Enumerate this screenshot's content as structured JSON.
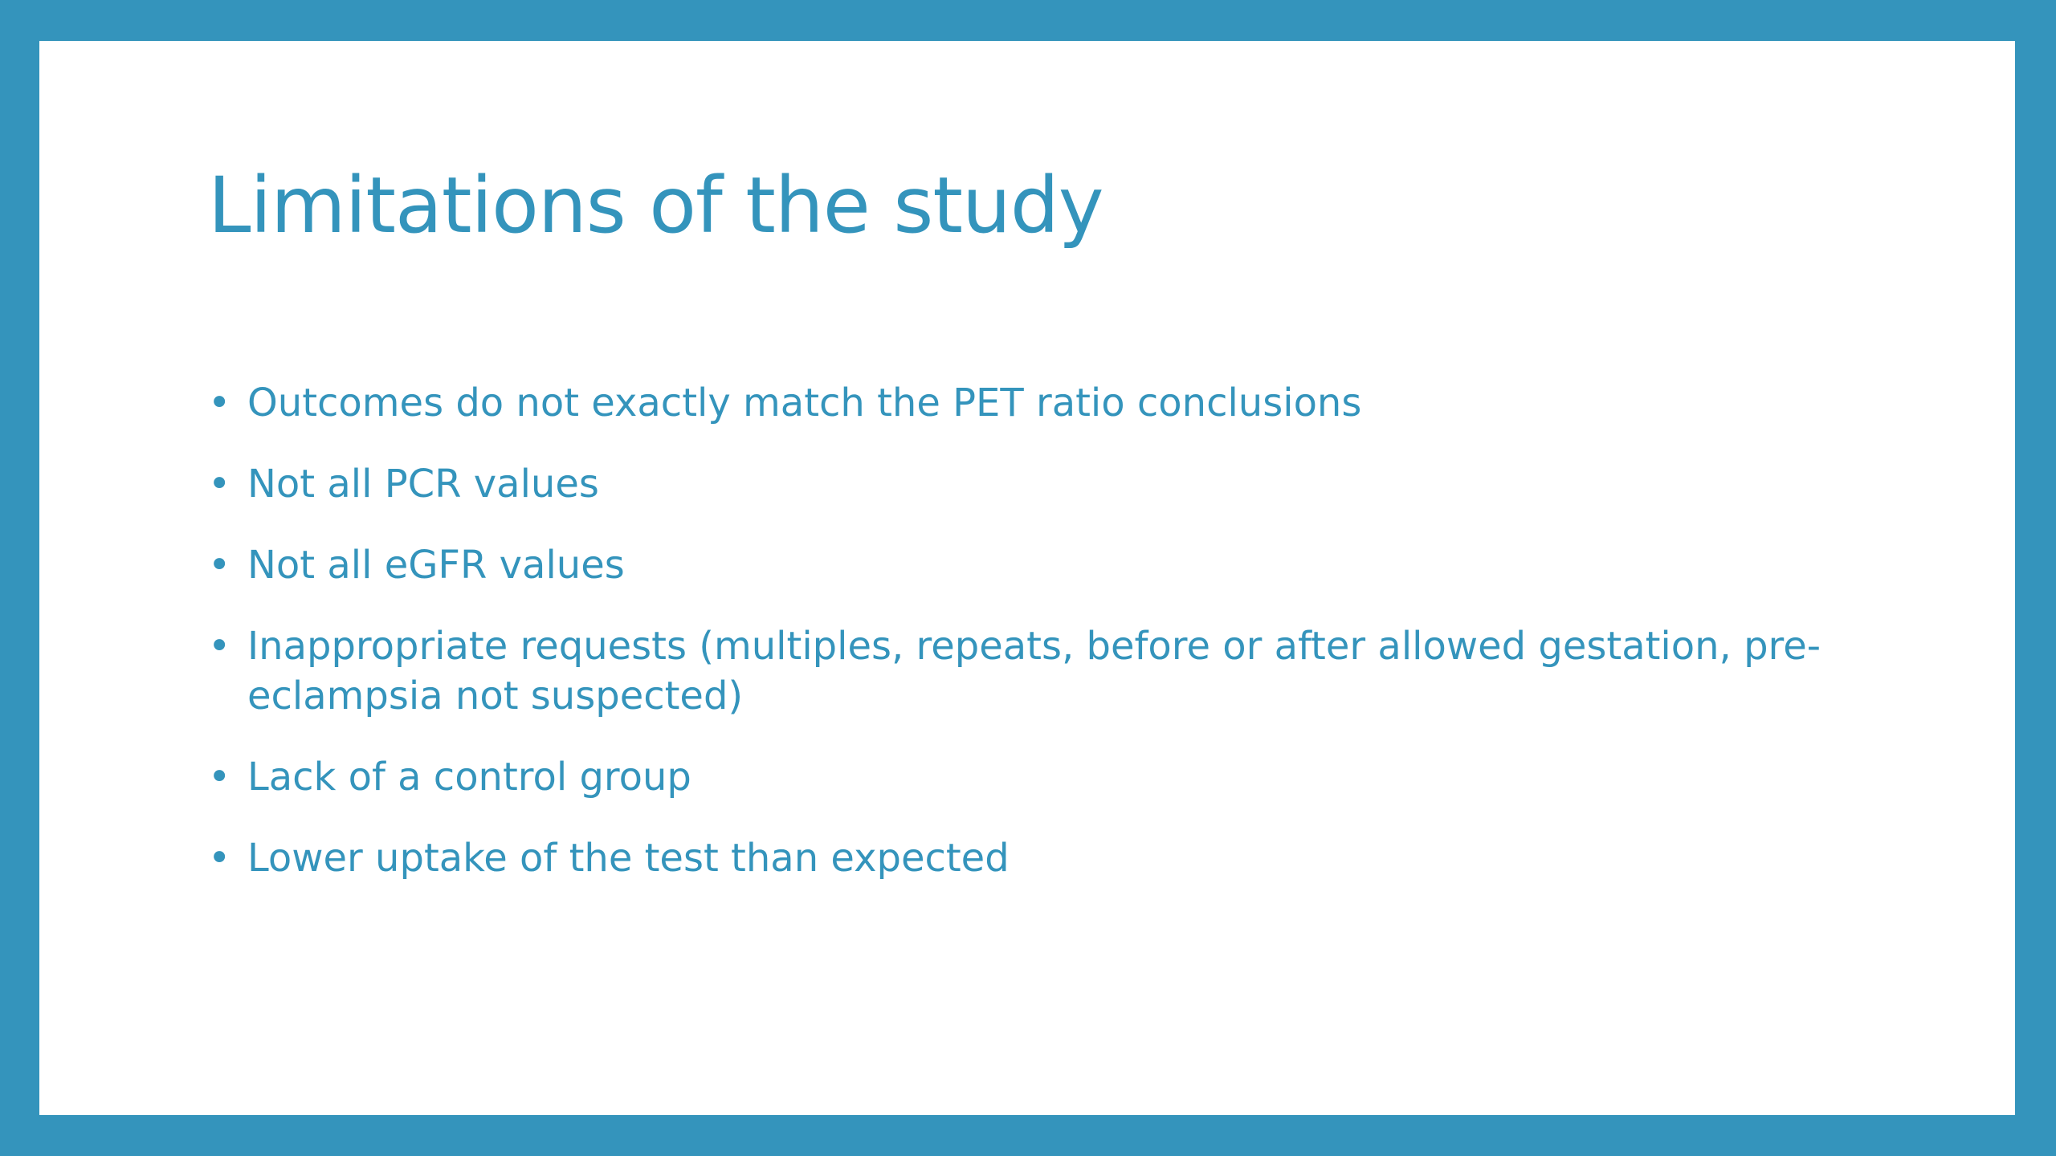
{
  "slide": {
    "title": "Limitations of the study",
    "bullets": [
      "Outcomes do not exactly match the PET ratio conclusions",
      "Not all PCR values",
      "Not all eGFR values",
      "Inappropriate requests (multiples, repeats, before or after allowed gestation, pre-eclampsia not suspected)",
      "Lack of a control group",
      "Lower uptake of the test than expected"
    ]
  },
  "colors": {
    "accent": "#3494bc",
    "background": "#ffffff"
  }
}
